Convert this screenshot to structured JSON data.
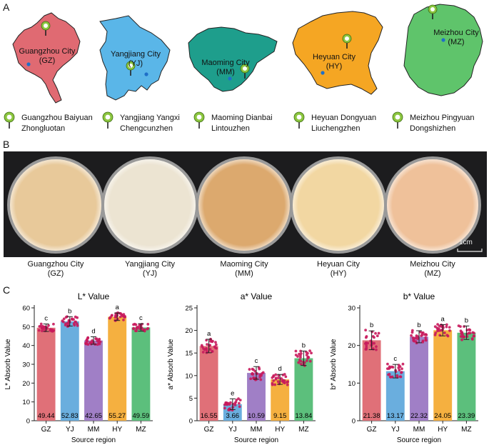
{
  "panels": {
    "a": "A",
    "b": "B",
    "c": "C"
  },
  "maps": [
    {
      "id": "gz",
      "city": "Guangzhou City",
      "code": "(GZ)",
      "color": "#e06a72"
    },
    {
      "id": "yj",
      "city": "Yangjiang City",
      "code": "(YJ)",
      "color": "#5ab6e8"
    },
    {
      "id": "mm",
      "city": "Maoming City",
      "code": "(MM)",
      "color": "#1e9e8c"
    },
    {
      "id": "hy",
      "city": "Heyuan City",
      "code": "(HY)",
      "color": "#f5a623"
    },
    {
      "id": "mz",
      "city": "Meizhou City",
      "code": "(MZ)",
      "color": "#5fc46b"
    }
  ],
  "legend": [
    {
      "line1": "Guangzhou Baiyuan",
      "line2": "Zhongluotan"
    },
    {
      "line1": "Yangjiang Yangxi",
      "line2": "Chengcunzhen"
    },
    {
      "line1": "Maoming Dianbai",
      "line2": "Lintouzhen"
    },
    {
      "line1": "Heyuan Dongyuan",
      "line2": "Liuchengzhen"
    },
    {
      "line1": "Meizhou Pingyuan",
      "line2": "Dongshizhen"
    }
  ],
  "dishes": [
    {
      "city": "Guangzhou City",
      "code": "(GZ)",
      "color": "#e8c99a"
    },
    {
      "city": "Yangjiang City",
      "code": "(YJ)",
      "color": "#ece4d2"
    },
    {
      "city": "Maoming City",
      "code": "(MM)",
      "color": "#dca96e"
    },
    {
      "city": "Heyuan City",
      "code": "(HY)",
      "color": "#f2d7a2"
    },
    {
      "city": "Meizhou City",
      "code": "(MZ)",
      "color": "#efc19a"
    }
  ],
  "scale_bar": "1cm",
  "chart_data": [
    {
      "type": "bar",
      "title": "L* Value",
      "ylabel": "L* Absorb Value",
      "xlabel": "Source region",
      "categories": [
        "GZ",
        "YJ",
        "MM",
        "HY",
        "MZ"
      ],
      "values": [
        49.44,
        52.83,
        42.65,
        55.27,
        49.59
      ],
      "value_labels": [
        "49.44",
        "52.83",
        "42.65",
        "55.27",
        "49.59"
      ],
      "letters": [
        "c",
        "b",
        "d",
        "a",
        "c"
      ],
      "errors": [
        2,
        2.5,
        2,
        2,
        2
      ],
      "ylim": [
        0,
        60
      ],
      "yticks": [
        0,
        10,
        20,
        30,
        40,
        50,
        60
      ],
      "colors": [
        "#e07078",
        "#6aaede",
        "#a07fc6",
        "#f5b040",
        "#5cbf7c"
      ]
    },
    {
      "type": "bar",
      "title": "a* Value",
      "ylabel": "a* Absorb Value",
      "xlabel": "Source region",
      "categories": [
        "GZ",
        "YJ",
        "MM",
        "HY",
        "MZ"
      ],
      "values": [
        16.55,
        3.66,
        10.59,
        9.15,
        13.84
      ],
      "value_labels": [
        "16.55",
        "3.66",
        "10.59",
        "9.15",
        "13.84"
      ],
      "letters": [
        "a",
        "e",
        "c",
        "d",
        "b"
      ],
      "errors": [
        1.5,
        1.2,
        1.4,
        1.1,
        1.6
      ],
      "ylim": [
        0,
        25
      ],
      "yticks": [
        0,
        5,
        10,
        15,
        20,
        25
      ],
      "colors": [
        "#e07078",
        "#6aaede",
        "#a07fc6",
        "#f5b040",
        "#5cbf7c"
      ]
    },
    {
      "type": "bar",
      "title": "b* Value",
      "ylabel": "b* Absorb Value",
      "xlabel": "Source region",
      "categories": [
        "GZ",
        "YJ",
        "MM",
        "HY",
        "MZ"
      ],
      "values": [
        21.38,
        13.17,
        22.32,
        24.05,
        23.39
      ],
      "value_labels": [
        "21.38",
        "13.17",
        "22.32",
        "24.05",
        "23.39"
      ],
      "letters": [
        "b",
        "c",
        "b",
        "a",
        "b"
      ],
      "errors": [
        2.5,
        1.8,
        1.6,
        1.5,
        1.8
      ],
      "ylim": [
        0,
        30
      ],
      "yticks": [
        0,
        10,
        20,
        30
      ],
      "colors": [
        "#e07078",
        "#6aaede",
        "#a07fc6",
        "#f5b040",
        "#5cbf7c"
      ]
    }
  ],
  "dot_color": "#c8195c"
}
